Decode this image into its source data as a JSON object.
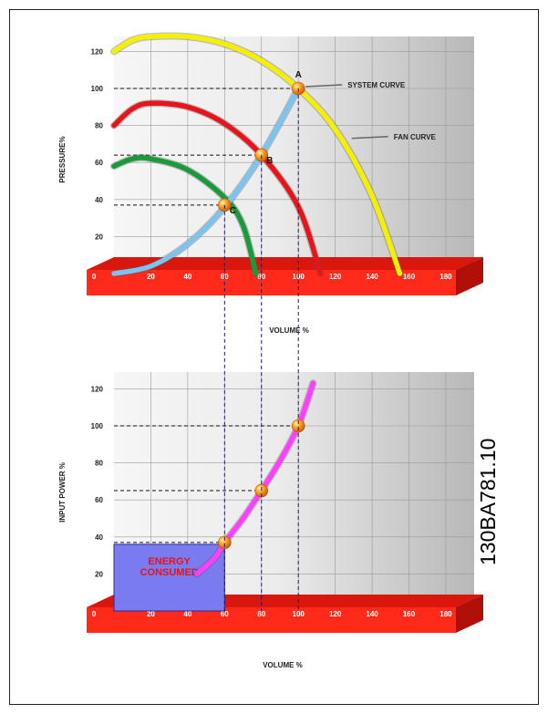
{
  "document_id": "130BA781.10",
  "colors": {
    "fan_curve": "#f5f000",
    "fan_curve_red": "#e8141c",
    "fan_curve_green": "#1a9a3a",
    "system_curve": "#7cc3f0",
    "power_curve": "#ff3fff",
    "base_red": "#ff2a1a",
    "energy_box": "#7b7bf0",
    "marker": "#ff9a10",
    "panel_light": "#f4f4f4",
    "panel_dark": "#b9b9b9",
    "energy_text": "#e0141c"
  },
  "chart_data": [
    {
      "type": "line",
      "title": "",
      "xlabel": "VOLUME %",
      "ylabel": "PRESSURE%",
      "xlim": [
        0,
        180
      ],
      "ylim": [
        0,
        130
      ],
      "x_ticks": [
        "0",
        "20",
        "40",
        "60",
        "80",
        "100",
        "120",
        "140",
        "160",
        "180"
      ],
      "y_ticks": [
        "20",
        "40",
        "60",
        "80",
        "100",
        "120"
      ],
      "grid": true,
      "series": [
        {
          "key": "fan_100",
          "color": "#f5f000",
          "x": [
            0,
            10,
            20,
            40,
            60,
            80,
            100,
            120,
            140,
            155
          ],
          "y": [
            120,
            126,
            128,
            128,
            124,
            115,
            100,
            78,
            42,
            0
          ]
        },
        {
          "key": "fan_80",
          "color": "#e8141c",
          "x": [
            0,
            10,
            20,
            40,
            60,
            80,
            100,
            112
          ],
          "y": [
            80,
            89,
            92,
            90,
            81,
            64,
            36,
            0
          ]
        },
        {
          "key": "fan_60",
          "color": "#1a9a3a",
          "x": [
            0,
            10,
            20,
            40,
            60,
            70,
            77
          ],
          "y": [
            58,
            62,
            62,
            56,
            41,
            26,
            0
          ]
        },
        {
          "key": "system",
          "color": "#7cc3f0",
          "x": [
            0,
            20,
            40,
            60,
            80,
            100
          ],
          "y": [
            0,
            4,
            16,
            36,
            64,
            100
          ]
        }
      ],
      "points": [
        {
          "label": "A",
          "x": 100,
          "y": 100
        },
        {
          "label": "B",
          "x": 80,
          "y": 64
        },
        {
          "label": "C",
          "x": 60,
          "y": 37
        }
      ],
      "annotations": [
        {
          "text": "SYSTEM CURVE",
          "x": 100,
          "y": 101
        },
        {
          "text": "FAN CURVE",
          "x": 125,
          "y": 73
        }
      ]
    },
    {
      "type": "line",
      "title": "",
      "xlabel": "VOLUME %",
      "ylabel": "INPUT POWER %",
      "xlim": [
        0,
        180
      ],
      "ylim": [
        0,
        130
      ],
      "x_ticks": [
        "0",
        "20",
        "40",
        "60",
        "80",
        "100",
        "120",
        "140",
        "160",
        "180"
      ],
      "y_ticks": [
        "20",
        "40",
        "60",
        "80",
        "100",
        "120"
      ],
      "grid": true,
      "series": [
        {
          "key": "power",
          "color": "#ff3fff",
          "x": [
            45,
            55,
            60,
            70,
            80,
            90,
            100,
            108
          ],
          "y": [
            20,
            29,
            37,
            50,
            65,
            81,
            100,
            123
          ]
        }
      ],
      "points": [
        {
          "label": "",
          "x": 60,
          "y": 37
        },
        {
          "label": "",
          "x": 80,
          "y": 65
        },
        {
          "label": "",
          "x": 100,
          "y": 100
        }
      ],
      "energy_area": {
        "x": [
          0,
          60
        ],
        "y": [
          0,
          36
        ],
        "label": "ENERGY\nCONSUMED"
      }
    }
  ]
}
